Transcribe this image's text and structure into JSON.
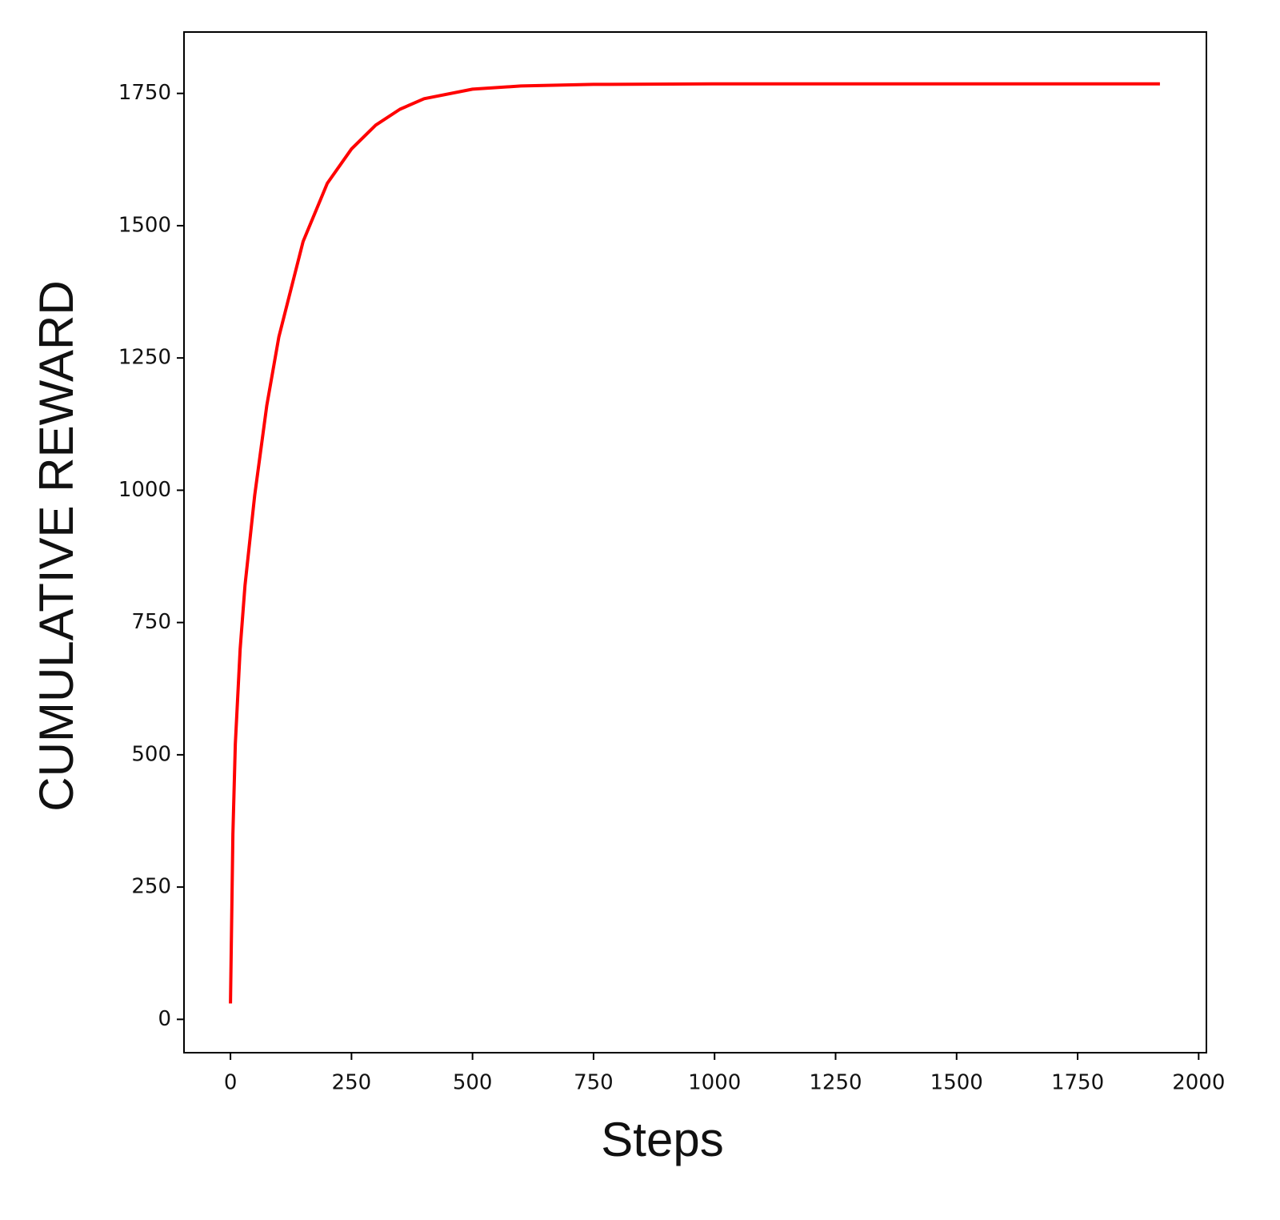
{
  "chart_data": {
    "type": "line",
    "x_label": "Steps",
    "y_label": "CUMULATIVE REWARD",
    "x": [
      0,
      5,
      10,
      20,
      30,
      50,
      75,
      100,
      150,
      200,
      250,
      300,
      350,
      400,
      500,
      600,
      750,
      1000,
      1500,
      1920
    ],
    "series": [
      {
        "color": "#ff0000",
        "values": [
          30,
          350,
          520,
          700,
          820,
          990,
          1160,
          1290,
          1470,
          1580,
          1645,
          1690,
          1720,
          1740,
          1758,
          1764,
          1767,
          1768,
          1768,
          1768
        ]
      }
    ],
    "xlim": [
      -96,
      2016
    ],
    "xticks": [
      0,
      250,
      500,
      750,
      1000,
      1250,
      1500,
      1750,
      2000
    ],
    "ylim": [
      -63,
      1866
    ],
    "yticks": [
      0,
      250,
      500,
      750,
      1000,
      1250,
      1500,
      1750
    ],
    "grid": false
  }
}
